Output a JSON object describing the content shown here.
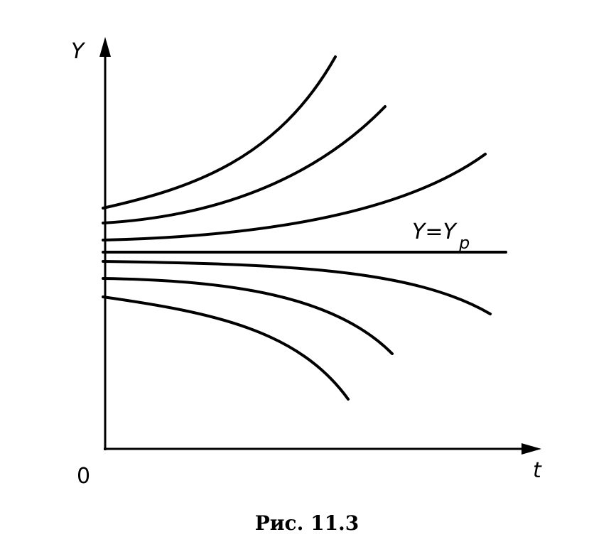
{
  "axes": {
    "y_label": "Y",
    "x_label": "t",
    "origin": "0"
  },
  "equilibrium_label": {
    "text": "Y=Y",
    "subscript": "p"
  },
  "caption": "Рис. 11.3"
}
